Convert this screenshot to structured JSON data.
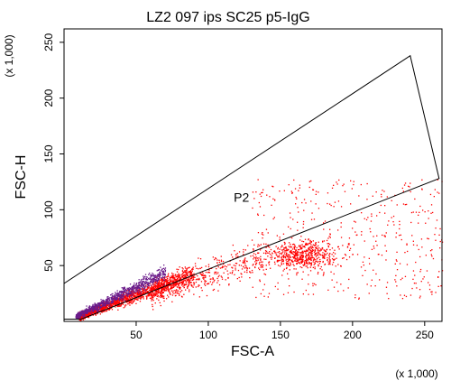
{
  "chart_data": {
    "type": "scatter",
    "title": "LZ2 097 ips SC25 p5-IgG",
    "xlabel": "FSC-A",
    "ylabel": "FSC-H",
    "x_multiplier": "(x 1,000)",
    "y_multiplier": "(x 1,000)",
    "xlim": [
      0,
      262
    ],
    "ylim": [
      0,
      262
    ],
    "xticks": [
      "50",
      "100",
      "150",
      "200",
      "250"
    ],
    "yticks": [
      "50",
      "100",
      "150",
      "200",
      "250"
    ],
    "grid": false,
    "gate": {
      "name": "P2",
      "color": "#000000",
      "polygon": [
        [
          0,
          34
        ],
        [
          0,
          2
        ],
        [
          12,
          2
        ],
        [
          260,
          128
        ],
        [
          240,
          238
        ]
      ],
      "label_at": [
        123,
        107
      ]
    },
    "series": [
      {
        "color": "#ff0000",
        "clusters": [
          {
            "x_range": [
              10,
              90
            ],
            "y_slope": 0.48,
            "y_spread": 6,
            "count": 1600
          },
          {
            "x_range": [
              60,
              140
            ],
            "y_slope": 0.42,
            "y_spread": 12,
            "count": 500
          },
          {
            "x_center": 165,
            "y_center": 60,
            "x_spread": 22,
            "y_spread": 12,
            "count": 550
          },
          {
            "x_range": [
              130,
              262
            ],
            "y_range": [
              20,
              128
            ],
            "count": 450
          }
        ]
      },
      {
        "color": "#6a1b8a",
        "clusters": [
          {
            "x_range": [
              8,
              70
            ],
            "y_slope": 0.62,
            "y_spread": 5,
            "count": 900
          }
        ]
      }
    ]
  }
}
